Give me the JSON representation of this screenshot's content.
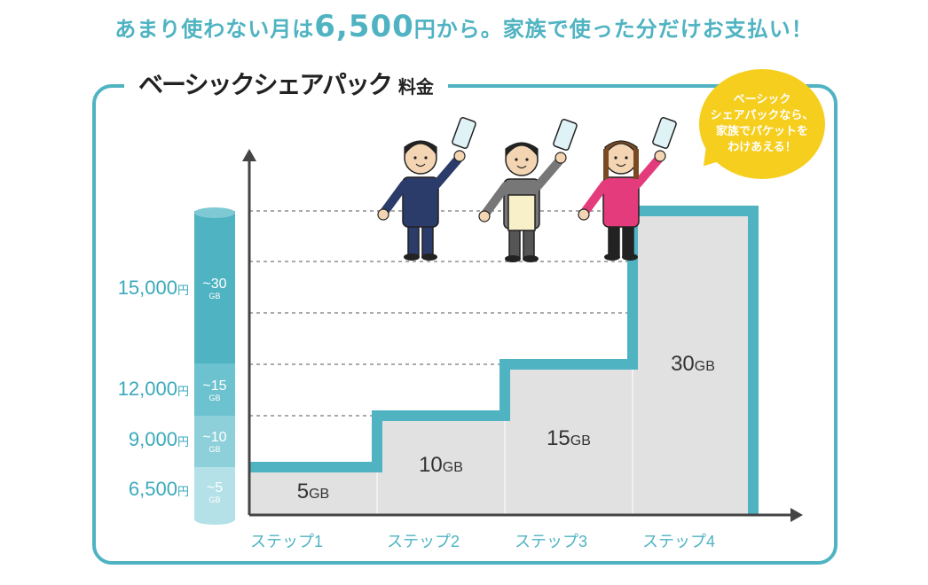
{
  "headline": {
    "pre": "あまり使わない月は",
    "amount": "6,500",
    "post": "円から。家族で使った分だけお支払い！"
  },
  "frame_title": {
    "main": "ベーシックシェアパック",
    "sub": "料金"
  },
  "bubble": {
    "text": "ベーシック\nシェアパックなら、\n家族でパケットを\nわけあえる！"
  },
  "colors": {
    "accent": "#4fb3c2",
    "bar_fill": "#e1e1e1",
    "bubble": "#f6ce1e",
    "price_text": "#3aa9bb"
  },
  "chart_data": {
    "type": "bar",
    "title": "ベーシックシェアパック 料金",
    "categories": [
      "ステップ1",
      "ステップ2",
      "ステップ3",
      "ステップ4"
    ],
    "values": [
      5,
      10,
      15,
      30
    ],
    "value_labels": [
      "5GB",
      "10GB",
      "15GB",
      "30GB"
    ],
    "prices": [
      {
        "price": "6,500",
        "unit": "円",
        "cap": "~5",
        "cap_unit": "GB"
      },
      {
        "price": "9,000",
        "unit": "円",
        "cap": "~10",
        "cap_unit": "GB"
      },
      {
        "price": "12,000",
        "unit": "円",
        "cap": "~15",
        "cap_unit": "GB"
      },
      {
        "price": "15,000",
        "unit": "円",
        "cap": "~30",
        "cap_unit": "GB"
      }
    ],
    "grid": true
  }
}
